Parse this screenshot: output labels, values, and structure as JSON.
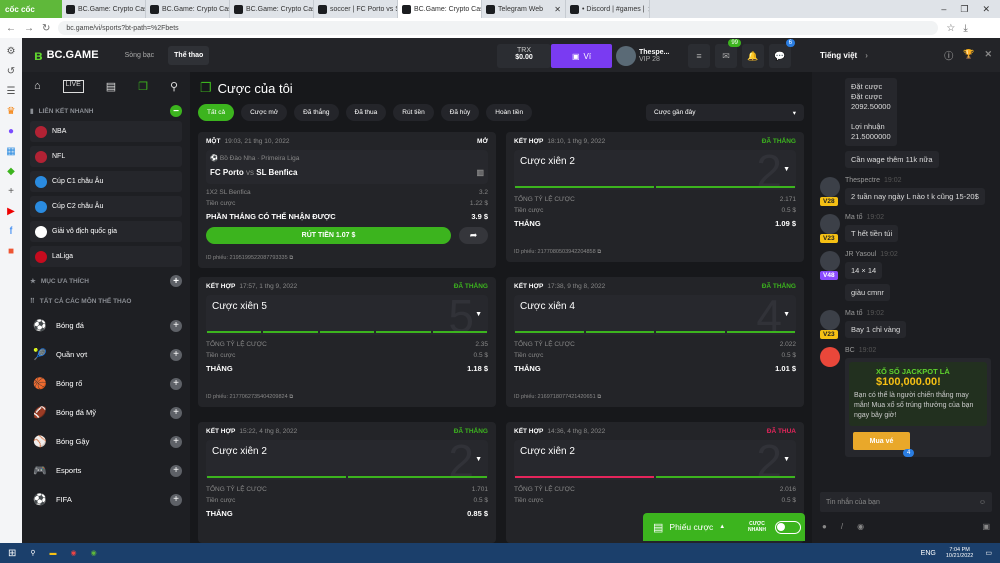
{
  "browser": {
    "brand": "cốc cốc",
    "tabs": [
      "BC.Game: Crypto Casino",
      "BC.Game: Crypto Casino",
      "BC.Game: Crypto Casino",
      "soccer | FC Porto vs SL B",
      "BC.Game: Crypto Casino",
      "Telegram Web",
      "• Discord | #games |"
    ],
    "active_tab": 4,
    "url": "bc.game/vi/sports?bt-path=%2Fbets"
  },
  "header": {
    "logo": "BC.GAME",
    "nav": [
      "Sòng bạc",
      "Thể thao"
    ],
    "currency": "TRX",
    "balance": "$0.00",
    "wallet_label": "Ví",
    "username": "Thespe...",
    "vip": "VIP 28",
    "mail_badge": "99",
    "chat_badge": "6",
    "accent": "#3cb41e",
    "wallet_color": "#7a3bf2"
  },
  "sidebar": {
    "quick_links_title": "LIÊN KẾT NHANH",
    "quick_links": [
      "NBA",
      "NFL",
      "Cúp C1 châu Âu",
      "Cúp C2 châu Âu",
      "Giải vô địch quốc gia",
      "LaLiga"
    ],
    "favorites_title": "MỤC ƯA THÍCH",
    "all_sports_title": "TẤT CẢ CÁC MÔN THỂ THAO",
    "sports": [
      "Bóng đá",
      "Quần vợt",
      "Bóng rổ",
      "Bóng đá Mỹ",
      "Bóng Gậy",
      "Esports",
      "FIFA"
    ]
  },
  "main": {
    "title": "Cược của tôi",
    "filters": [
      "Tất cả",
      "Cược mở",
      "Đã thắng",
      "Đã thua",
      "Rút tiền",
      "Đã hủy",
      "Hoàn tiền"
    ],
    "active_filter": 0,
    "sort": "Cược gần đây",
    "single": {
      "type": "MỘT",
      "date": "19:03, 21 thg 10, 2022",
      "status": "MỞ",
      "league": "Bồ Đào Nha · Primeira Liga",
      "home": "FC Porto",
      "vs": "vs",
      "away": "SL Benfica",
      "pick": "1X2 SL Benfica",
      "odds": "3.2",
      "stake_label": "Tiền cược",
      "stake": "1.22 $",
      "potential_label": "PHẦN THẮNG CÓ THỂ NHẬN ĐƯỢC",
      "potential": "3.9 $",
      "cashout": "RÚT TIỀN 1.07 $",
      "id": "ID phiếu: 2195199522087793335"
    },
    "combos": [
      {
        "type": "KẾT HỢP",
        "date": "18:10, 1 thg 9, 2022",
        "status": "ĐÃ THẮNG",
        "result": "win",
        "title": "Cược xiên 2",
        "legs": 2,
        "legs_lost": 0,
        "odds_label": "TỔNG TỶ LỆ CƯỢC",
        "odds": "2.171",
        "stake_label": "Tiền cược",
        "stake": "0.5 $",
        "win_label": "THẮNG",
        "win": "1.09 $",
        "id": "ID phiếu: 2177080503942204858"
      },
      {
        "type": "KẾT HỢP",
        "date": "17:57, 1 thg 9, 2022",
        "status": "ĐÃ THẮNG",
        "result": "win",
        "title": "Cược xiên 5",
        "legs": 5,
        "legs_lost": 0,
        "odds_label": "TỔNG TỶ LỆ CƯỢC",
        "odds": "2.35",
        "stake_label": "Tiền cược",
        "stake": "0.5 $",
        "win_label": "THẮNG",
        "win": "1.18 $",
        "id": "ID phiếu: 2177062735404209824"
      },
      {
        "type": "KẾT HỢP",
        "date": "17:38, 9 thg 8, 2022",
        "status": "ĐÃ THẮNG",
        "result": "win",
        "title": "Cược xiên 4",
        "legs": 4,
        "legs_lost": 0,
        "odds_label": "TỔNG TỶ LỆ CƯỢC",
        "odds": "2.022",
        "stake_label": "Tiền cược",
        "stake": "0.5 $",
        "win_label": "THẮNG",
        "win": "1.01 $",
        "id": "ID phiếu: 2169718077421420651"
      },
      {
        "type": "KẾT HỢP",
        "date": "15:22, 4 thg 8, 2022",
        "status": "ĐÃ THẮNG",
        "result": "win",
        "title": "Cược xiên 2",
        "legs": 2,
        "legs_lost": 0,
        "odds_label": "TỔNG TỶ LỆ CƯỢC",
        "odds": "1.701",
        "stake_label": "Tiền cược",
        "stake": "0.5 $",
        "win_label": "THẮNG",
        "win": "0.85 $",
        "id": ""
      },
      {
        "type": "KẾT HỢP",
        "date": "14:36, 4 thg 8, 2022",
        "status": "ĐÃ THUA",
        "result": "lose",
        "title": "Cược xiên 2",
        "legs": 2,
        "legs_lost": 1,
        "odds_label": "TỔNG TỶ LỆ CƯỢC",
        "odds": "2.016",
        "stake_label": "Tiền cược",
        "stake": "0.5 $",
        "win_label": "",
        "win": "",
        "id": ""
      }
    ]
  },
  "betslip": {
    "label": "Phiếu cược",
    "quick_label": "CƯỢC NHANH"
  },
  "chat": {
    "language": "Tiếng việt",
    "first_bubble": [
      "Đặt cược",
      "Đặt cược",
      "2092.50000",
      "",
      "Lợi nhuận",
      "21.5000000"
    ],
    "second_bubble": "Cần wage thêm 11k nữa",
    "messages": [
      {
        "user": "Thespectre",
        "time": "19:02",
        "level": "V28",
        "texts": [
          "2 tuần nay ngày L nào t k cũng 15-20$"
        ]
      },
      {
        "user": "Ma tổ",
        "time": "19:02",
        "level": "V23",
        "texts": [
          "T hết tiền túi"
        ]
      },
      {
        "user": "JR Yasoul",
        "time": "19:02",
        "level": "V48",
        "texts": [
          "14 × 14",
          "giàu cmnr"
        ]
      },
      {
        "user": "Ma tổ",
        "time": "19:02",
        "level": "V23",
        "texts": [
          "Bay 1 chỉ vàng"
        ]
      }
    ],
    "bot": {
      "user": "BC",
      "time": "19:02",
      "promo_title": "XỔ SỐ JACKPOT LÀ",
      "promo_amount": "$100,000.00!",
      "promo_text": "Bạn có thể là người chiến thắng may mắn! Mua xổ số trúng thưởng của bạn ngay bây giờ!",
      "button": "Mua vé",
      "badge": "4"
    },
    "input_placeholder": "Tin nhắn của bạn"
  },
  "taskbar": {
    "lang": "ENG",
    "time": "7:04 PM",
    "date": "10/21/2022"
  }
}
